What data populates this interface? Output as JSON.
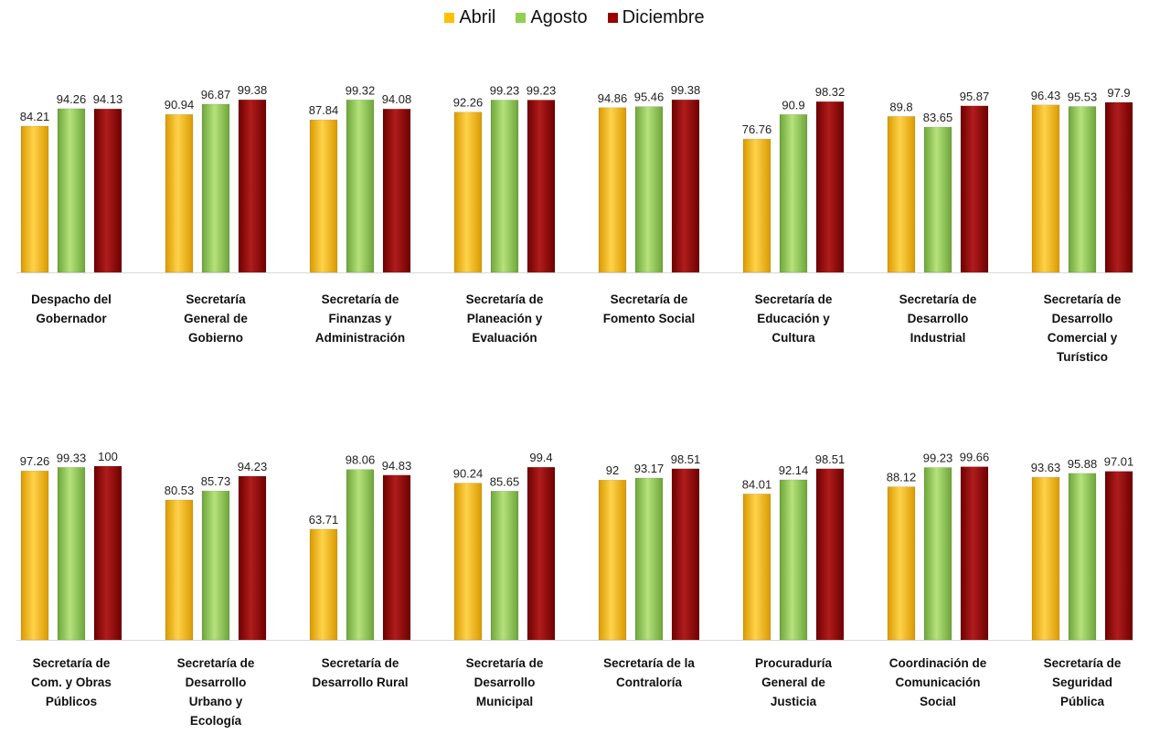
{
  "chart_data": {
    "type": "bar",
    "series": [
      {
        "name": "Abril",
        "color": "#ffc000"
      },
      {
        "name": "Agosto",
        "color": "#92d050"
      },
      {
        "name": "Diciembre",
        "color": "#990000"
      }
    ],
    "legend_position": "top-center",
    "panels": [
      {
        "categories": [
          {
            "label": [
              "Despacho del",
              "Gobernador"
            ],
            "values": [
              84.21,
              94.26,
              94.13
            ],
            "labels": [
              "84.21",
              "94.26",
              "94.13"
            ]
          },
          {
            "label": [
              "Secretaría",
              "General de",
              "Gobierno"
            ],
            "values": [
              90.94,
              96.87,
              99.38
            ],
            "labels": [
              "90.94",
              "96.87",
              "99.38"
            ]
          },
          {
            "label": [
              "Secretaría de",
              "Finanzas y",
              "Administración"
            ],
            "values": [
              87.84,
              99.32,
              94.08
            ],
            "labels": [
              "87.84",
              "99.32",
              "94.08"
            ]
          },
          {
            "label": [
              "Secretaría de",
              "Planeación y",
              "Evaluación"
            ],
            "values": [
              92.26,
              99.23,
              99.23
            ],
            "labels": [
              "92.26",
              "99.23",
              "99.23"
            ]
          },
          {
            "label": [
              "Secretaría de",
              "Fomento Social"
            ],
            "values": [
              94.86,
              95.46,
              99.38
            ],
            "labels": [
              "94.86",
              "95.46",
              "99.38"
            ]
          },
          {
            "label": [
              "Secretaría de",
              "Educación y",
              "Cultura"
            ],
            "values": [
              76.76,
              90.9,
              98.32
            ],
            "labels": [
              "76.76",
              "90.9",
              "98.32"
            ]
          },
          {
            "label": [
              "Secretaría de",
              "Desarrollo",
              "Industrial"
            ],
            "values": [
              89.8,
              83.65,
              95.87
            ],
            "labels": [
              "89.8",
              "83.65",
              "95.87"
            ]
          },
          {
            "label": [
              "Secretaría de",
              "Desarrollo",
              "Comercial y",
              "Turístico"
            ],
            "values": [
              96.43,
              95.53,
              97.9
            ],
            "labels": [
              "96.43",
              "95.53",
              "97.9"
            ]
          }
        ]
      },
      {
        "categories": [
          {
            "label": [
              "Secretaría de",
              "Com. y Obras",
              "Públicos"
            ],
            "values": [
              97.26,
              99.33,
              100
            ],
            "labels": [
              "97.26",
              "99.33",
              "100"
            ]
          },
          {
            "label": [
              "Secretaría de",
              "Desarrollo",
              "Urbano y",
              "Ecología"
            ],
            "values": [
              80.53,
              85.73,
              94.23
            ],
            "labels": [
              "80.53",
              "85.73",
              "94.23"
            ]
          },
          {
            "label": [
              "Secretaría de",
              "Desarrollo Rural"
            ],
            "values": [
              63.71,
              98.06,
              94.83
            ],
            "labels": [
              "63.71",
              "98.06",
              "94.83"
            ]
          },
          {
            "label": [
              "Secretaría de",
              "Desarrollo",
              "Municipal"
            ],
            "values": [
              90.24,
              85.65,
              99.4
            ],
            "labels": [
              "90.24",
              "85.65",
              "99.4"
            ]
          },
          {
            "label": [
              "Secretaría de la",
              "Contraloría"
            ],
            "values": [
              92.0,
              93.17,
              98.51
            ],
            "labels": [
              "92",
              "93.17",
              "98.51"
            ]
          },
          {
            "label": [
              "Procuraduría",
              "General de",
              "Justicia"
            ],
            "values": [
              84.01,
              92.14,
              98.51
            ],
            "labels": [
              "84.01",
              "92.14",
              "98.51"
            ]
          },
          {
            "label": [
              "Coordinación de",
              "Comunicación",
              "Social"
            ],
            "values": [
              88.12,
              99.23,
              99.66
            ],
            "labels": [
              "88.12",
              "99.23",
              "99.66"
            ]
          },
          {
            "label": [
              "Secretaría de",
              "Seguridad",
              "Pública"
            ],
            "values": [
              93.63,
              95.88,
              97.01
            ],
            "labels": [
              "93.63",
              "95.88",
              "97.01"
            ]
          }
        ]
      }
    ]
  }
}
